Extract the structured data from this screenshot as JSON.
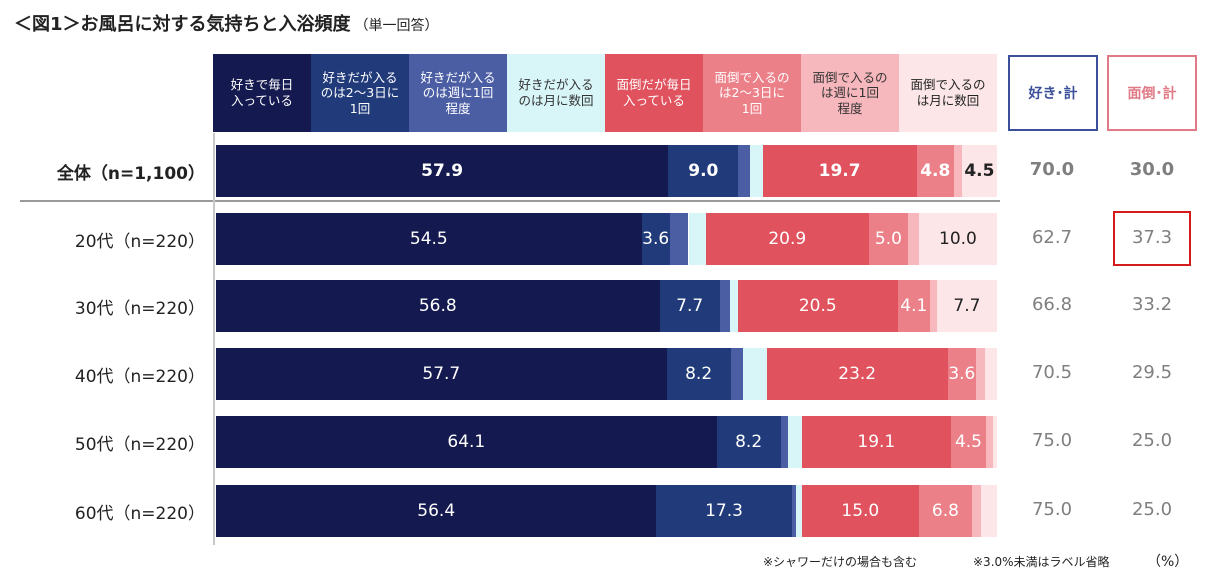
{
  "title": "＜図1＞お風呂に対する気持ちと入浴頻度",
  "subtitle": "（単一回答）",
  "chart_data": {
    "type": "bar",
    "orientation": "horizontal",
    "stacked": true,
    "percent": true,
    "title": "＜図1＞お風呂に対する気持ちと入浴頻度",
    "categories": [
      "全体（n=1,100）",
      "20代（n=220）",
      "30代（n=220）",
      "40代（n=220）",
      "50代（n=220）",
      "60代（n=220）"
    ],
    "series": [
      {
        "name": "好きで毎日\n入っている",
        "color": "#141a4f",
        "text": "#ffffff",
        "values": [
          57.9,
          54.5,
          56.8,
          57.7,
          64.1,
          56.4
        ]
      },
      {
        "name": "好きだが入る\nのは2～3日に\n1回",
        "color": "#203a7a",
        "text": "#ffffff",
        "values": [
          9.0,
          3.6,
          7.7,
          8.2,
          8.2,
          17.3
        ]
      },
      {
        "name": "好きだが入る\nのは週に1回\n程度",
        "color": "#4b5ea4",
        "text": "#ffffff",
        "values": [
          1.5,
          2.4,
          1.3,
          1.6,
          1.0,
          0.6
        ]
      },
      {
        "name": "好きだが入る\nのは月に数回",
        "color": "#d8f5f8",
        "text": "#333333",
        "values": [
          1.6,
          2.2,
          1.0,
          3.0,
          1.7,
          0.7
        ]
      },
      {
        "name": "面倒だが毎日\n入っている",
        "color": "#e0525e",
        "text": "#ffffff",
        "values": [
          19.7,
          20.9,
          20.5,
          23.2,
          19.1,
          15.0
        ]
      },
      {
        "name": "面倒で入るの\nは2～3日に\n1回",
        "color": "#ec8089",
        "text": "#ffffff",
        "values": [
          4.8,
          5.0,
          4.1,
          3.6,
          4.5,
          6.8
        ]
      },
      {
        "name": "面倒で入るの\nは週に1回\n程度",
        "color": "#f6b7bd",
        "text": "#333333",
        "values": [
          1.0,
          1.4,
          0.9,
          1.2,
          0.9,
          1.1
        ]
      },
      {
        "name": "面倒で入るの\nは月に数回",
        "color": "#fce6e8",
        "text": "#222222",
        "values": [
          4.5,
          10.0,
          7.7,
          1.5,
          0.5,
          2.1
        ]
      }
    ],
    "labels": [
      [
        "57.9",
        "9.0",
        "",
        "",
        "19.7",
        "4.8",
        "",
        "4.5"
      ],
      [
        "54.5",
        "3.6",
        "",
        "",
        "20.9",
        "5.0",
        "",
        "10.0"
      ],
      [
        "56.8",
        "7.7",
        "",
        "",
        "20.5",
        "4.1",
        "",
        "7.7"
      ],
      [
        "57.7",
        "8.2",
        "",
        "",
        "23.2",
        "3.6",
        "",
        ""
      ],
      [
        "64.1",
        "8.2",
        "",
        "",
        "19.1",
        "4.5",
        "",
        ""
      ],
      [
        "56.4",
        "17.3",
        "",
        "",
        "15.0",
        "6.8",
        "",
        ""
      ]
    ],
    "totals": {
      "like": {
        "name": "好き･計",
        "color": "#3b4f9a",
        "values": [
          "70.0",
          "62.7",
          "66.8",
          "70.5",
          "75.0",
          "75.0"
        ]
      },
      "bother": {
        "name": "面倒･計",
        "color": "#e07a86",
        "values": [
          "30.0",
          "37.3",
          "33.2",
          "29.5",
          "25.0",
          "25.0"
        ]
      }
    },
    "highlight": {
      "row": 1,
      "column": "bother"
    },
    "xlim": [
      0,
      100
    ]
  },
  "notes": {
    "shower": "※シャワーだけの場合も含む",
    "label_rule": "※3.0%未満はラベル省略",
    "unit": "（%）"
  }
}
